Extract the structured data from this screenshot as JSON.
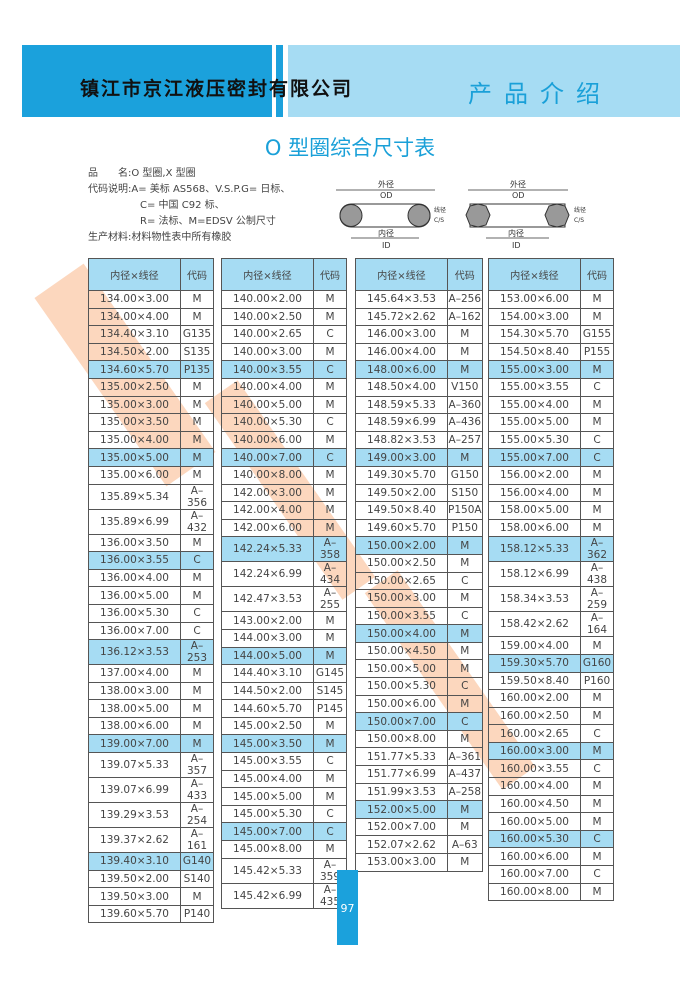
{
  "header": {
    "company": "镇江市京江液压密封有限公司",
    "section": "产品介绍"
  },
  "title": "O 型圈综合尺寸表",
  "info": {
    "line1": "品　　名:O 型圈,X 型圈",
    "line2": "代码说明:A= 美标 AS568、V.S.P.G= 日标、",
    "line3": "C= 中国 C92 标、",
    "line4": "R= 法标、M=EDSV 公制尺寸",
    "line5": "生产材料:材料物性表中所有橡胶"
  },
  "diagram": {
    "od_cn": "外径",
    "od": "OD",
    "id_cn": "内径",
    "id": "ID",
    "cs_cn": "线径",
    "cs": "C/S"
  },
  "table_headers": [
    "内径×线径",
    "代码"
  ],
  "highlight_color": "#a6dcf3",
  "tables": [
    [
      [
        "134.00×3.00",
        "M"
      ],
      [
        "134.00×4.00",
        "M"
      ],
      [
        "134.40×3.10",
        "G135"
      ],
      [
        "134.50×2.00",
        "S135"
      ],
      [
        "134.60×5.70",
        "P135"
      ],
      [
        "135.00×2.50",
        "M"
      ],
      [
        "135.00×3.00",
        "M"
      ],
      [
        "135.00×3.50",
        "M"
      ],
      [
        "135.00×4.00",
        "M"
      ],
      [
        "135.00×5.00",
        "M"
      ],
      [
        "135.00×6.00",
        "M"
      ],
      [
        "135.89×5.34",
        "A–356"
      ],
      [
        "135.89×6.99",
        "A–432"
      ],
      [
        "136.00×3.50",
        "M"
      ],
      [
        "136.00×3.55",
        "C"
      ],
      [
        "136.00×4.00",
        "M"
      ],
      [
        "136.00×5.00",
        "M"
      ],
      [
        "136.00×5.30",
        "C"
      ],
      [
        "136.00×7.00",
        "C"
      ],
      [
        "136.12×3.53",
        "A–253"
      ],
      [
        "137.00×4.00",
        "M"
      ],
      [
        "138.00×3.00",
        "M"
      ],
      [
        "138.00×5.00",
        "M"
      ],
      [
        "138.00×6.00",
        "M"
      ],
      [
        "139.00×7.00",
        "M"
      ],
      [
        "139.07×5.33",
        "A–357"
      ],
      [
        "139.07×6.99",
        "A–433"
      ],
      [
        "139.29×3.53",
        "A–254"
      ],
      [
        "139.37×2.62",
        "A–161"
      ],
      [
        "139.40×3.10",
        "G140"
      ],
      [
        "139.50×2.00",
        "S140"
      ],
      [
        "139.50×3.00",
        "M"
      ],
      [
        "139.60×5.70",
        "P140"
      ]
    ],
    [
      [
        "140.00×2.00",
        "M"
      ],
      [
        "140.00×2.50",
        "M"
      ],
      [
        "140.00×2.65",
        "C"
      ],
      [
        "140.00×3.00",
        "M"
      ],
      [
        "140.00×3.55",
        "C"
      ],
      [
        "140.00×4.00",
        "M"
      ],
      [
        "140.00×5.00",
        "M"
      ],
      [
        "140.00×5.30",
        "C"
      ],
      [
        "140.00×6.00",
        "M"
      ],
      [
        "140.00×7.00",
        "C"
      ],
      [
        "140.00×8.00",
        "M"
      ],
      [
        "142.00×3.00",
        "M"
      ],
      [
        "142.00×4.00",
        "M"
      ],
      [
        "142.00×6.00",
        "M"
      ],
      [
        "142.24×5.33",
        "A–358"
      ],
      [
        "142.24×6.99",
        "A–434"
      ],
      [
        "142.47×3.53",
        "A–255"
      ],
      [
        "143.00×2.00",
        "M"
      ],
      [
        "144.00×3.00",
        "M"
      ],
      [
        "144.00×5.00",
        "M"
      ],
      [
        "144.40×3.10",
        "G145"
      ],
      [
        "144.50×2.00",
        "S145"
      ],
      [
        "144.60×5.70",
        "P145"
      ],
      [
        "145.00×2.50",
        "M"
      ],
      [
        "145.00×3.50",
        "M"
      ],
      [
        "145.00×3.55",
        "C"
      ],
      [
        "145.00×4.00",
        "M"
      ],
      [
        "145.00×5.00",
        "M"
      ],
      [
        "145.00×5.30",
        "C"
      ],
      [
        "145.00×7.00",
        "C"
      ],
      [
        "145.00×8.00",
        "M"
      ],
      [
        "145.42×5.33",
        "A–359"
      ],
      [
        "145.42×6.99",
        "A–435"
      ]
    ],
    [
      [
        "145.64×3.53",
        "A–256"
      ],
      [
        "145.72×2.62",
        "A–162"
      ],
      [
        "146.00×3.00",
        "M"
      ],
      [
        "146.00×4.00",
        "M"
      ],
      [
        "148.00×6.00",
        "M"
      ],
      [
        "148.50×4.00",
        "V150"
      ],
      [
        "148.59×5.33",
        "A–360"
      ],
      [
        "148.59×6.99",
        "A–436"
      ],
      [
        "148.82×3.53",
        "A–257"
      ],
      [
        "149.00×3.00",
        "M"
      ],
      [
        "149.30×5.70",
        "G150"
      ],
      [
        "149.50×2.00",
        "S150"
      ],
      [
        "149.50×8.40",
        "P150A"
      ],
      [
        "149.60×5.70",
        "P150"
      ],
      [
        "150.00×2.00",
        "M"
      ],
      [
        "150.00×2.50",
        "M"
      ],
      [
        "150.00×2.65",
        "C"
      ],
      [
        "150.00×3.00",
        "M"
      ],
      [
        "150.00×3.55",
        "C"
      ],
      [
        "150.00×4.00",
        "M"
      ],
      [
        "150.00×4.50",
        "M"
      ],
      [
        "150.00×5.00",
        "M"
      ],
      [
        "150.00×5.30",
        "C"
      ],
      [
        "150.00×6.00",
        "M"
      ],
      [
        "150.00×7.00",
        "C"
      ],
      [
        "150.00×8.00",
        "M"
      ],
      [
        "151.77×5.33",
        "A–361"
      ],
      [
        "151.77×6.99",
        "A–437"
      ],
      [
        "151.99×3.53",
        "A–258"
      ],
      [
        "152.00×5.00",
        "M"
      ],
      [
        "152.00×7.00",
        "M"
      ],
      [
        "152.07×2.62",
        "A–63"
      ],
      [
        "153.00×3.00",
        "M"
      ]
    ],
    [
      [
        "153.00×6.00",
        "M"
      ],
      [
        "154.00×3.00",
        "M"
      ],
      [
        "154.30×5.70",
        "G155"
      ],
      [
        "154.50×8.40",
        "P155"
      ],
      [
        "155.00×3.00",
        "M"
      ],
      [
        "155.00×3.55",
        "C"
      ],
      [
        "155.00×4.00",
        "M"
      ],
      [
        "155.00×5.00",
        "M"
      ],
      [
        "155.00×5.30",
        "C"
      ],
      [
        "155.00×7.00",
        "C"
      ],
      [
        "156.00×2.00",
        "M"
      ],
      [
        "156.00×4.00",
        "M"
      ],
      [
        "158.00×5.00",
        "M"
      ],
      [
        "158.00×6.00",
        "M"
      ],
      [
        "158.12×5.33",
        "A–362"
      ],
      [
        "158.12×6.99",
        "A–438"
      ],
      [
        "158.34×3.53",
        "A–259"
      ],
      [
        "158.42×2.62",
        "A–164"
      ],
      [
        "159.00×4.00",
        "M"
      ],
      [
        "159.30×5.70",
        "G160"
      ],
      [
        "159.50×8.40",
        "P160"
      ],
      [
        "160.00×2.00",
        "M"
      ],
      [
        "160.00×2.50",
        "M"
      ],
      [
        "160.00×2.65",
        "C"
      ],
      [
        "160.00×3.00",
        "M"
      ],
      [
        "160.00×3.55",
        "C"
      ],
      [
        "160.00×4.00",
        "M"
      ],
      [
        "160.00×4.50",
        "M"
      ],
      [
        "160.00×5.00",
        "M"
      ],
      [
        "160.00×5.30",
        "C"
      ],
      [
        "160.00×6.00",
        "M"
      ],
      [
        "160.00×7.00",
        "C"
      ],
      [
        "160.00×8.00",
        "M"
      ]
    ]
  ],
  "page_number": "97"
}
